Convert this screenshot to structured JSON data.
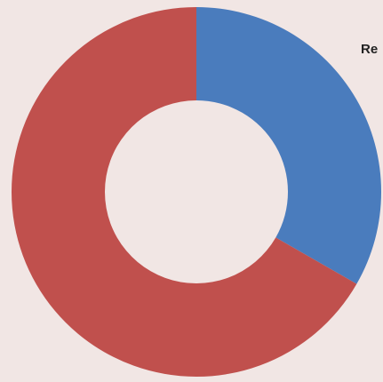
{
  "chart_data": {
    "type": "pie",
    "donut": true,
    "series": [
      {
        "values": [
          33.3,
          66.7
        ],
        "colors": [
          "#4a7cbd",
          "#c0504d"
        ]
      }
    ],
    "annotations": [
      "Re"
    ],
    "legend": "none",
    "grid": false
  }
}
